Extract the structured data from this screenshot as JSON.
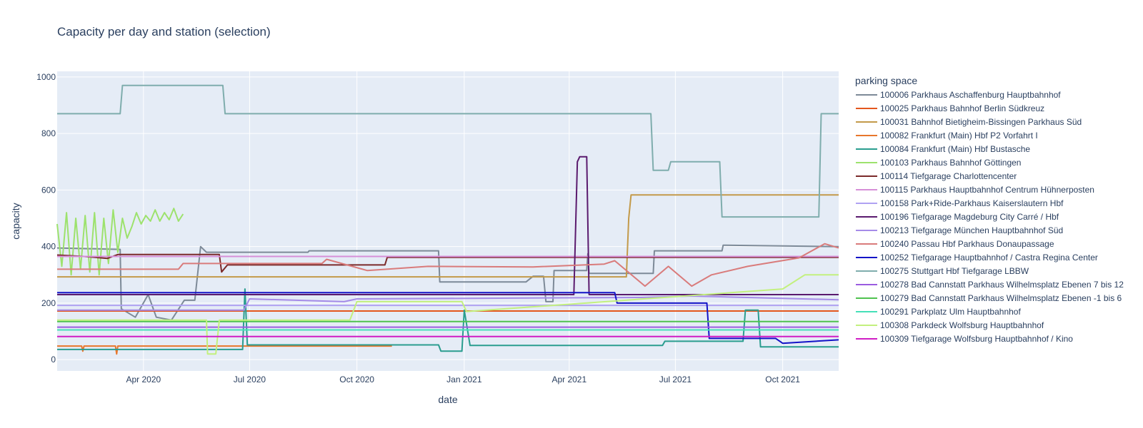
{
  "chart_data": {
    "type": "line",
    "title": "Capacity per day and station (selection)",
    "xlabel": "date",
    "ylabel": "capacity",
    "x_range": [
      "2020-01-18",
      "2021-11-18"
    ],
    "ylim": [
      -40,
      1020
    ],
    "grid": true,
    "legend_placement": "right",
    "legend_title": "parking space",
    "x_ticks": [
      {
        "date": "2020-04-01",
        "label": "Apr 2020"
      },
      {
        "date": "2020-07-01",
        "label": "Jul 2020"
      },
      {
        "date": "2020-10-01",
        "label": "Oct 2020"
      },
      {
        "date": "2021-01-01",
        "label": "Jan 2021"
      },
      {
        "date": "2021-04-01",
        "label": "Apr 2021"
      },
      {
        "date": "2021-07-01",
        "label": "Jul 2021"
      },
      {
        "date": "2021-10-01",
        "label": "Oct 2021"
      }
    ],
    "y_ticks": [
      {
        "value": 0,
        "label": "0"
      },
      {
        "value": 200,
        "label": "200"
      },
      {
        "value": 400,
        "label": "400"
      },
      {
        "value": 600,
        "label": "600"
      },
      {
        "value": 800,
        "label": "800"
      },
      {
        "value": 1000,
        "label": "1000"
      }
    ],
    "colors": {
      "plot_bg": "#E5ECF6",
      "grid": "#ffffff",
      "text": "#2a3f5f"
    },
    "series": [
      {
        "name": "100006 Parkhaus Aschaffenburg Hauptbahnhof",
        "color": "#7d8a98",
        "points": [
          [
            "2020-01-18",
            395
          ],
          [
            "2020-03-12",
            390
          ],
          [
            "2020-03-13",
            180
          ],
          [
            "2020-03-25",
            150
          ],
          [
            "2020-04-05",
            230
          ],
          [
            "2020-04-12",
            150
          ],
          [
            "2020-04-25",
            140
          ],
          [
            "2020-05-06",
            210
          ],
          [
            "2020-05-15",
            210
          ],
          [
            "2020-05-20",
            400
          ],
          [
            "2020-05-25",
            380
          ],
          [
            "2020-08-20",
            380
          ],
          [
            "2020-08-21",
            385
          ],
          [
            "2020-12-10",
            385
          ],
          [
            "2020-12-11",
            275
          ],
          [
            "2021-02-23",
            275
          ],
          [
            "2021-03-01",
            295
          ],
          [
            "2021-03-10",
            295
          ],
          [
            "2021-03-12",
            205
          ],
          [
            "2021-03-18",
            205
          ],
          [
            "2021-03-19",
            315
          ],
          [
            "2021-04-16",
            315
          ],
          [
            "2021-04-17",
            375
          ],
          [
            "2021-04-18",
            305
          ],
          [
            "2021-06-12",
            305
          ],
          [
            "2021-06-13",
            385
          ],
          [
            "2021-08-10",
            385
          ],
          [
            "2021-08-11",
            405
          ],
          [
            "2021-11-18",
            400
          ]
        ]
      },
      {
        "name": "100025 Parkhaus Bahnhof Berlin Südkreuz",
        "color": "#e4571d",
        "points": [
          [
            "2020-01-18",
            172
          ],
          [
            "2021-11-18",
            172
          ]
        ]
      },
      {
        "name": "100031 Bahnhof Bietigheim-Bissingen Parkhaus Süd",
        "color": "#c39a4a",
        "points": [
          [
            "2020-01-18",
            293
          ],
          [
            "2021-05-20",
            293
          ],
          [
            "2021-05-22",
            500
          ],
          [
            "2021-05-24",
            583
          ],
          [
            "2021-11-18",
            583
          ]
        ]
      },
      {
        "name": "100082 Frankfurt (Main) Hbf P2 Vorfahrt I",
        "color": "#e8762b",
        "points": [
          [
            "2020-01-18",
            48
          ],
          [
            "2020-02-08",
            48
          ],
          [
            "2020-02-09",
            30
          ],
          [
            "2020-02-10",
            48
          ],
          [
            "2020-03-08",
            48
          ],
          [
            "2020-03-09",
            20
          ],
          [
            "2020-03-10",
            48
          ],
          [
            "2020-10-31",
            48
          ]
        ]
      },
      {
        "name": "100084 Frankfurt (Main) Hbf Bustasche",
        "color": "#2a9d8f",
        "points": [
          [
            "2020-01-18",
            36
          ],
          [
            "2020-06-25",
            36
          ],
          [
            "2020-06-27",
            250
          ],
          [
            "2020-06-29",
            52
          ],
          [
            "2020-12-10",
            52
          ],
          [
            "2020-12-12",
            30
          ],
          [
            "2020-12-30",
            30
          ],
          [
            "2021-01-01",
            175
          ],
          [
            "2021-01-06",
            50
          ],
          [
            "2021-06-20",
            50
          ],
          [
            "2021-06-22",
            65
          ],
          [
            "2021-08-28",
            65
          ],
          [
            "2021-08-30",
            175
          ],
          [
            "2021-09-10",
            175
          ],
          [
            "2021-09-12",
            45
          ],
          [
            "2021-11-18",
            45
          ]
        ]
      },
      {
        "name": "100103 Parkhaus Bahnhof Göttingen",
        "color": "#9de26d",
        "points": [
          [
            "2020-01-18",
            480
          ],
          [
            "2020-01-22",
            330
          ],
          [
            "2020-01-26",
            520
          ],
          [
            "2020-01-30",
            300
          ],
          [
            "2020-02-03",
            500
          ],
          [
            "2020-02-07",
            320
          ],
          [
            "2020-02-11",
            510
          ],
          [
            "2020-02-15",
            310
          ],
          [
            "2020-02-19",
            520
          ],
          [
            "2020-02-23",
            300
          ],
          [
            "2020-02-27",
            500
          ],
          [
            "2020-03-02",
            340
          ],
          [
            "2020-03-06",
            530
          ],
          [
            "2020-03-10",
            380
          ],
          [
            "2020-03-14",
            500
          ],
          [
            "2020-03-18",
            430
          ],
          [
            "2020-03-22",
            470
          ],
          [
            "2020-03-26",
            520
          ],
          [
            "2020-03-30",
            480
          ],
          [
            "2020-04-03",
            510
          ],
          [
            "2020-04-07",
            490
          ],
          [
            "2020-04-11",
            530
          ],
          [
            "2020-04-15",
            490
          ],
          [
            "2020-04-19",
            520
          ],
          [
            "2020-04-23",
            495
          ],
          [
            "2020-04-27",
            535
          ],
          [
            "2020-05-01",
            490
          ],
          [
            "2020-05-05",
            515
          ]
        ]
      },
      {
        "name": "100114 Tiefgarage Charlottencenter",
        "color": "#7b2a2a",
        "points": [
          [
            "2020-01-18",
            370
          ],
          [
            "2020-02-10",
            365
          ],
          [
            "2020-03-01",
            358
          ],
          [
            "2020-03-10",
            372
          ],
          [
            "2020-06-05",
            372
          ],
          [
            "2020-06-07",
            310
          ],
          [
            "2020-06-12",
            335
          ],
          [
            "2020-10-25",
            335
          ],
          [
            "2020-10-27",
            362
          ],
          [
            "2021-11-18",
            362
          ]
        ]
      },
      {
        "name": "100115 Parkhaus Hauptbahnhof Centrum Hühnerposten",
        "color": "#d78fd8",
        "points": [
          [
            "2020-01-18",
            365
          ],
          [
            "2021-11-18",
            365
          ]
        ]
      },
      {
        "name": "100158 Park+Ride-Parkhaus Kaiserslautern Hbf",
        "color": "#b0a2f2",
        "points": [
          [
            "2020-01-18",
            192
          ],
          [
            "2021-11-18",
            192
          ]
        ]
      },
      {
        "name": "100196 Tiefgarage Magdeburg City Carré / Hbf",
        "color": "#5a1a6e",
        "points": [
          [
            "2020-01-18",
            230
          ],
          [
            "2021-04-05",
            230
          ],
          [
            "2021-04-08",
            700
          ],
          [
            "2021-04-10",
            718
          ],
          [
            "2021-04-16",
            718
          ],
          [
            "2021-04-18",
            230
          ],
          [
            "2021-11-18",
            230
          ]
        ]
      },
      {
        "name": "100213 Tiefgarage München Hauptbahnhof Süd",
        "color": "#a58be8",
        "points": [
          [
            "2020-01-18",
            175
          ],
          [
            "2020-06-26",
            175
          ],
          [
            "2020-07-01",
            215
          ],
          [
            "2020-09-20",
            205
          ],
          [
            "2020-10-01",
            215
          ],
          [
            "2021-06-01",
            220
          ],
          [
            "2021-07-15",
            225
          ],
          [
            "2021-11-18",
            212
          ]
        ]
      },
      {
        "name": "100240 Passau Hbf Parkhaus Donaupassage",
        "color": "#d97b7b",
        "points": [
          [
            "2020-01-18",
            320
          ],
          [
            "2020-05-01",
            320
          ],
          [
            "2020-05-05",
            340
          ],
          [
            "2020-09-01",
            340
          ],
          [
            "2020-09-05",
            355
          ],
          [
            "2020-10-10",
            315
          ],
          [
            "2020-12-01",
            330
          ],
          [
            "2021-03-01",
            328
          ],
          [
            "2021-05-01",
            338
          ],
          [
            "2021-05-10",
            350
          ],
          [
            "2021-06-05",
            260
          ],
          [
            "2021-06-25",
            330
          ],
          [
            "2021-07-15",
            260
          ],
          [
            "2021-08-01",
            300
          ],
          [
            "2021-09-01",
            330
          ],
          [
            "2021-10-15",
            360
          ],
          [
            "2021-11-06",
            410
          ],
          [
            "2021-11-18",
            395
          ]
        ]
      },
      {
        "name": "100252 Tiefgarage Hauptbahnhof / Castra Regina Center",
        "color": "#1313c7",
        "points": [
          [
            "2020-01-18",
            237
          ],
          [
            "2021-05-10",
            237
          ],
          [
            "2021-05-12",
            200
          ],
          [
            "2021-07-28",
            200
          ],
          [
            "2021-07-30",
            75
          ],
          [
            "2021-09-25",
            75
          ],
          [
            "2021-10-01",
            58
          ],
          [
            "2021-11-18",
            70
          ]
        ]
      },
      {
        "name": "100275 Stuttgart Hbf Tiefgarage LBBW",
        "color": "#7fadad",
        "points": [
          [
            "2020-01-18",
            870
          ],
          [
            "2020-03-12",
            870
          ],
          [
            "2020-03-14",
            970
          ],
          [
            "2020-06-08",
            970
          ],
          [
            "2020-06-10",
            870
          ],
          [
            "2021-06-10",
            870
          ],
          [
            "2021-06-12",
            670
          ],
          [
            "2021-06-25",
            670
          ],
          [
            "2021-06-27",
            700
          ],
          [
            "2021-08-08",
            700
          ],
          [
            "2021-08-10",
            505
          ],
          [
            "2021-11-01",
            505
          ],
          [
            "2021-11-03",
            870
          ],
          [
            "2021-11-18",
            870
          ]
        ]
      },
      {
        "name": "100278 Bad Cannstatt Parkhaus Wilhelmsplatz Ebenen 7 bis 12",
        "color": "#9a5ce0",
        "points": [
          [
            "2020-01-18",
            115
          ],
          [
            "2021-11-18",
            115
          ]
        ]
      },
      {
        "name": "100279 Bad Cannstatt Parkhaus Wilhelmsplatz Ebenen -1 bis 6",
        "color": "#4fc24f",
        "points": [
          [
            "2020-01-18",
            135
          ],
          [
            "2021-11-18",
            135
          ]
        ]
      },
      {
        "name": "100291 Parkplatz Ulm Hauptbahnhof",
        "color": "#45e0b8",
        "points": [
          [
            "2020-01-18",
            105
          ],
          [
            "2021-11-18",
            105
          ]
        ]
      },
      {
        "name": "100308 Parkdeck Wolfsburg Hauptbahnhof",
        "color": "#c3f07e",
        "points": [
          [
            "2020-01-18",
            140
          ],
          [
            "2020-05-25",
            140
          ],
          [
            "2020-05-26",
            20
          ],
          [
            "2020-06-02",
            20
          ],
          [
            "2020-06-05",
            140
          ],
          [
            "2020-09-25",
            140
          ],
          [
            "2020-10-01",
            205
          ],
          [
            "2020-12-30",
            205
          ],
          [
            "2021-01-03",
            170
          ],
          [
            "2021-10-01",
            250
          ],
          [
            "2021-10-20",
            300
          ],
          [
            "2021-11-18",
            300
          ]
        ]
      },
      {
        "name": "100309 Tiefgarage Wolfsburg Hauptbahnhof / Kino",
        "color": "#d01dc4",
        "points": [
          [
            "2020-01-18",
            82
          ],
          [
            "2021-11-18",
            82
          ]
        ]
      }
    ]
  }
}
